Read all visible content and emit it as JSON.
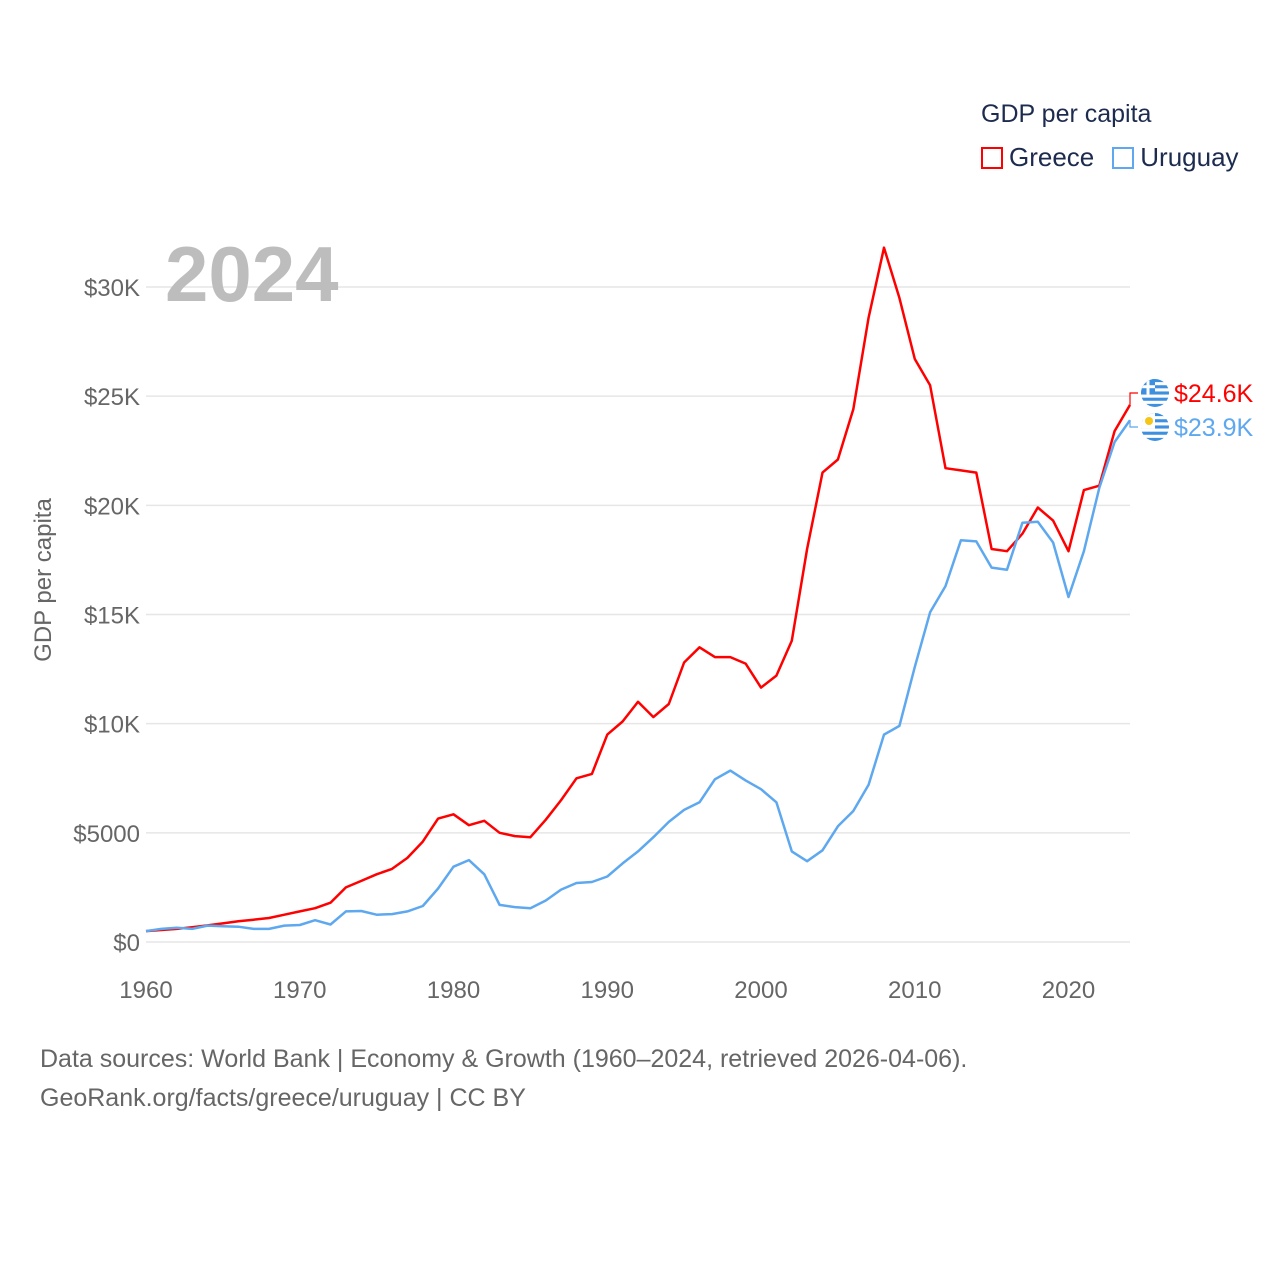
{
  "legend": {
    "title": "GDP per capita",
    "items": [
      "Greece",
      "Uruguay"
    ]
  },
  "year_label": "2024",
  "footer": {
    "line1": "Data sources: World Bank | Economy & Growth (1960–2024, retrieved 2026-04-06).",
    "line2": "GeoRank.org/facts/greece/uruguay | CC BY"
  },
  "chart_data": {
    "type": "line",
    "title": "GDP per capita",
    "xlabel": "",
    "ylabel": "GDP per capita",
    "xlim": [
      1960,
      2024
    ],
    "ylim": [
      0,
      30000
    ],
    "grid": true,
    "legend_position": "top-right",
    "x_ticks": [
      1960,
      1970,
      1980,
      1990,
      2000,
      2010,
      2020
    ],
    "x_tick_labels": [
      "1960",
      "1970",
      "1980",
      "1990",
      "2000",
      "2010",
      "2020"
    ],
    "y_ticks": [
      0,
      5000,
      10000,
      15000,
      20000,
      25000,
      30000
    ],
    "y_tick_labels": [
      "$0",
      "$5000",
      "$10K",
      "$15K",
      "$20K",
      "$25K",
      "$30K"
    ],
    "x_start": 1960,
    "series": [
      {
        "name": "Greece",
        "color": "#ff0000",
        "end_label": "$24.6K",
        "flag": "greece-flag",
        "values": [
          500,
          550,
          600,
          680,
          760,
          850,
          950,
          1020,
          1100,
          1250,
          1400,
          1550,
          1800,
          2500,
          2800,
          3100,
          3350,
          3850,
          4600,
          5650,
          5850,
          5350,
          5550,
          5000,
          4850,
          4800,
          5600,
          6500,
          7500,
          7700,
          9500,
          10100,
          11000,
          10300,
          10900,
          12800,
          13500,
          13050,
          13050,
          12750,
          11650,
          12200,
          13800,
          18000,
          21500,
          22100,
          24400,
          28600,
          31800,
          29500,
          26700,
          25500,
          21700,
          21600,
          21500,
          18000,
          17900,
          18700,
          19900,
          19300,
          17900,
          20700,
          20900,
          23400,
          24600
        ]
      },
      {
        "name": "Uruguay",
        "color": "#5ea8ef",
        "end_label": "$23.9K",
        "flag": "uruguay-flag",
        "values": [
          500,
          600,
          650,
          600,
          750,
          720,
          700,
          600,
          600,
          750,
          780,
          1000,
          800,
          1400,
          1420,
          1250,
          1280,
          1400,
          1650,
          2450,
          3450,
          3750,
          3100,
          1700,
          1600,
          1550,
          1900,
          2400,
          2700,
          2750,
          3000,
          3600,
          4150,
          4800,
          5500,
          6050,
          6400,
          7450,
          7850,
          7400,
          7000,
          6400,
          4150,
          3700,
          4200,
          5300,
          6000,
          7200,
          9500,
          9900,
          12600,
          15100,
          16300,
          18400,
          18350,
          17150,
          17050,
          19200,
          19250,
          18300,
          15800,
          17900,
          20800,
          22900,
          23900
        ]
      }
    ]
  }
}
